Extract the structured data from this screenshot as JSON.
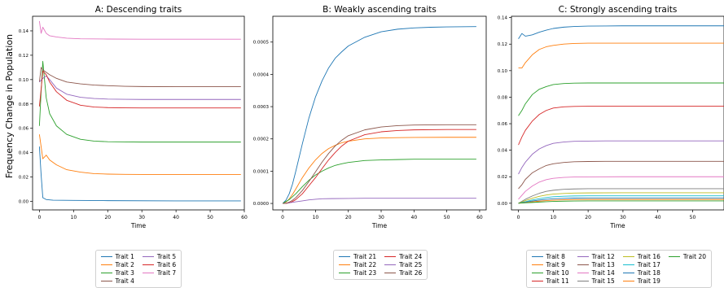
{
  "ylabel": "Frequency Change in Population",
  "palette": [
    "#1f77b4",
    "#ff7f0e",
    "#2ca02c",
    "#d62728",
    "#9467bd",
    "#8c564b",
    "#e377c2",
    "#7f7f7f",
    "#bcbd22",
    "#17becf"
  ],
  "chart_data": [
    {
      "type": "line",
      "title": "A: Descending traits",
      "xlabel": "Time",
      "ylabel": "Frequency Change in Population",
      "xlim": [
        -2,
        60
      ],
      "ylim": [
        -0.007,
        0.152
      ],
      "xticks": [
        0,
        10,
        20,
        30,
        40,
        50,
        60
      ],
      "yticks": [
        0.0,
        0.02,
        0.04,
        0.06,
        0.08,
        0.1,
        0.12,
        0.14
      ],
      "ytick_labels": [
        "0.00",
        "0.02",
        "0.04",
        "0.06",
        "0.08",
        "0.10",
        "0.12",
        "0.14"
      ],
      "legend": {
        "placement": "bottom-center",
        "columns": 2
      },
      "series": [
        {
          "name": "Trait 1",
          "color": "#1f77b4",
          "x": [
            0,
            0.5,
            1,
            2,
            4,
            10,
            20,
            40,
            59
          ],
          "y": [
            0.045,
            0.022,
            0.003,
            0.0015,
            0.001,
            0.0008,
            0.0006,
            0.0004,
            0.0004
          ]
        },
        {
          "name": "Trait 2",
          "color": "#ff7f0e",
          "x": [
            0,
            0.5,
            1,
            2,
            3,
            5,
            8,
            12,
            16,
            20,
            25,
            30,
            40,
            59
          ],
          "y": [
            0.055,
            0.045,
            0.035,
            0.038,
            0.034,
            0.03,
            0.026,
            0.024,
            0.0228,
            0.0224,
            0.0222,
            0.0221,
            0.0221,
            0.0221
          ]
        },
        {
          "name": "Trait 3",
          "color": "#2ca02c",
          "x": [
            0,
            0.5,
            1,
            2,
            3,
            5,
            8,
            12,
            16,
            20,
            25,
            30,
            40,
            59
          ],
          "y": [
            0.062,
            0.09,
            0.115,
            0.085,
            0.072,
            0.062,
            0.055,
            0.051,
            0.0495,
            0.049,
            0.0488,
            0.0487,
            0.0487,
            0.0487
          ]
        },
        {
          "name": "Trait 4",
          "color": "#8c564b",
          "x": [
            0,
            0.5,
            1,
            2,
            3,
            5,
            8,
            12,
            16,
            20,
            25,
            30,
            40,
            59
          ],
          "y": [
            0.098,
            0.11,
            0.108,
            0.106,
            0.104,
            0.101,
            0.098,
            0.0965,
            0.0955,
            0.095,
            0.0945,
            0.0943,
            0.0942,
            0.0942
          ]
        },
        {
          "name": "Trait 5",
          "color": "#9467bd",
          "x": [
            0,
            1,
            2,
            3,
            5,
            8,
            12,
            16,
            20,
            25,
            30,
            40,
            59
          ],
          "y": [
            0.098,
            0.101,
            0.103,
            0.1,
            0.093,
            0.088,
            0.0855,
            0.0845,
            0.084,
            0.0838,
            0.0837,
            0.0837,
            0.0837
          ]
        },
        {
          "name": "Trait 6",
          "color": "#d62728",
          "x": [
            0,
            0.5,
            1,
            2,
            3,
            5,
            8,
            12,
            16,
            20,
            25,
            30,
            40,
            59
          ],
          "y": [
            0.078,
            0.092,
            0.107,
            0.104,
            0.098,
            0.09,
            0.083,
            0.079,
            0.0775,
            0.077,
            0.0768,
            0.0767,
            0.0767,
            0.0767
          ]
        },
        {
          "name": "Trait 7",
          "color": "#e377c2",
          "x": [
            0,
            0.5,
            1,
            2,
            3,
            5,
            8,
            12,
            20,
            30,
            40,
            59
          ],
          "y": [
            0.148,
            0.138,
            0.143,
            0.138,
            0.136,
            0.135,
            0.134,
            0.1335,
            0.1333,
            0.1332,
            0.1332,
            0.1332
          ]
        }
      ]
    },
    {
      "type": "line",
      "title": "B: Weakly ascending traits",
      "xlabel": "Time",
      "ylabel": "",
      "xlim": [
        -3,
        62
      ],
      "ylim": [
        -2e-05,
        0.00058
      ],
      "xticks": [
        0,
        10,
        20,
        30,
        40,
        50,
        60
      ],
      "yticks": [
        0.0,
        0.0001,
        0.0002,
        0.0003,
        0.0004,
        0.0005
      ],
      "ytick_labels": [
        "0.0000",
        "0.0001",
        "0.0002",
        "0.0003",
        "0.0004",
        "0.0005"
      ],
      "legend": {
        "placement": "bottom-center",
        "columns": 2
      },
      "series": [
        {
          "name": "Trait 21",
          "color": "#1f77b4",
          "x": [
            0,
            1,
            2,
            3,
            4,
            6,
            8,
            10,
            12,
            14,
            16,
            18,
            20,
            25,
            30,
            35,
            40,
            45,
            50,
            59
          ],
          "y": [
            0,
            1e-05,
            3e-05,
            6e-05,
            0.0001,
            0.000185,
            0.000265,
            0.00033,
            0.00038,
            0.00042,
            0.00045,
            0.00047,
            0.000488,
            0.000515,
            0.000532,
            0.00054,
            0.000544,
            0.000546,
            0.000547,
            0.000548
          ]
        },
        {
          "name": "Trait 22",
          "color": "#ff7f0e",
          "x": [
            0,
            1,
            2,
            3,
            4,
            6,
            8,
            10,
            12,
            14,
            16,
            18,
            20,
            25,
            30,
            35,
            40,
            50,
            59
          ],
          "y": [
            0,
            4e-06,
            1.4e-05,
            2.8e-05,
            4.5e-05,
            8e-05,
            0.00011,
            0.000135,
            0.000155,
            0.00017,
            0.00018,
            0.000188,
            0.000193,
            0.0002,
            0.000203,
            0.000204,
            0.0002045,
            0.000205,
            0.000205
          ]
        },
        {
          "name": "Trait 23",
          "color": "#2ca02c",
          "x": [
            0,
            2,
            4,
            6,
            8,
            10,
            12,
            14,
            16,
            18,
            20,
            25,
            30,
            35,
            40,
            50,
            59
          ],
          "y": [
            0,
            1.2e-05,
            3e-05,
            5.2e-05,
            7.2e-05,
            8.8e-05,
            0.0001,
            0.00011,
            0.000118,
            0.000123,
            0.000127,
            0.000133,
            0.000135,
            0.000136,
            0.000137,
            0.000137,
            0.000137
          ]
        },
        {
          "name": "Trait 24",
          "color": "#d62728",
          "x": [
            0,
            1,
            2,
            3,
            4,
            6,
            8,
            10,
            12,
            14,
            16,
            18,
            20,
            25,
            30,
            35,
            40,
            50,
            59
          ],
          "y": [
            0,
            0,
            2e-06,
            6e-06,
            1.2e-05,
            3e-05,
            5.5e-05,
            8e-05,
            0.000108,
            0.000135,
            0.000158,
            0.000178,
            0.000193,
            0.000213,
            0.000222,
            0.000226,
            0.000228,
            0.000229,
            0.000229
          ]
        },
        {
          "name": "Trait 25",
          "color": "#9467bd",
          "x": [
            0,
            2,
            4,
            6,
            8,
            10,
            12,
            15,
            20,
            25,
            30,
            40,
            50,
            59
          ],
          "y": [
            0,
            2e-06,
            5e-06,
            8e-06,
            1.1e-05,
            1.3e-05,
            1.45e-05,
            1.5e-05,
            1.55e-05,
            1.6e-05,
            1.6e-05,
            1.6e-05,
            1.6e-05,
            1.6e-05
          ]
        },
        {
          "name": "Trait 26",
          "color": "#8c564b",
          "x": [
            0,
            1,
            2,
            3,
            4,
            6,
            8,
            10,
            12,
            14,
            16,
            18,
            20,
            25,
            30,
            35,
            40,
            50,
            59
          ],
          "y": [
            0,
            0,
            4e-06,
            1e-05,
            1.8e-05,
            4e-05,
            6.8e-05,
            9.8e-05,
            0.000128,
            0.000155,
            0.000178,
            0.000196,
            0.00021,
            0.000228,
            0.000237,
            0.000241,
            0.000243,
            0.000244,
            0.000244
          ]
        }
      ]
    },
    {
      "type": "line",
      "title": "C: Strongly ascending traits",
      "xlabel": "Time",
      "ylabel": "",
      "xlim": [
        -2,
        59
      ],
      "ylim": [
        -0.005,
        0.141
      ],
      "xticks": [
        0,
        10,
        20,
        30,
        40,
        50,
        60
      ],
      "yticks": [
        0.0,
        0.02,
        0.04,
        0.06,
        0.08,
        0.1,
        0.12,
        0.14
      ],
      "ytick_labels": [
        "0.00",
        "0.02",
        "0.04",
        "0.06",
        "0.08",
        "0.10",
        "0.12",
        "0.14"
      ],
      "legend": {
        "placement": "bottom-center",
        "columns": 4
      },
      "series": [
        {
          "name": "Trait 8",
          "color": "#1f77b4",
          "x": [
            0,
            0.5,
            1,
            1.5,
            2,
            3,
            4,
            6,
            8,
            10,
            13,
            16,
            20,
            25,
            30,
            40,
            50,
            59
          ],
          "y": [
            0.124,
            0.126,
            0.128,
            0.127,
            0.126,
            0.1265,
            0.127,
            0.129,
            0.1305,
            0.1318,
            0.1328,
            0.1333,
            0.1336,
            0.1337,
            0.1338,
            0.1338,
            0.1338,
            0.1338
          ]
        },
        {
          "name": "Trait 9",
          "color": "#ff7f0e",
          "x": [
            0,
            1,
            2,
            4,
            6,
            8,
            10,
            13,
            16,
            20,
            25,
            30,
            40,
            59
          ],
          "y": [
            0.102,
            0.102,
            0.106,
            0.112,
            0.116,
            0.118,
            0.119,
            0.12,
            0.1205,
            0.1207,
            0.1207,
            0.1207,
            0.1207,
            0.1207
          ]
        },
        {
          "name": "Trait 10",
          "color": "#2ca02c",
          "x": [
            0,
            1,
            2,
            4,
            6,
            8,
            10,
            13,
            16,
            20,
            25,
            30,
            40,
            59
          ],
          "y": [
            0.066,
            0.07,
            0.075,
            0.082,
            0.086,
            0.088,
            0.0895,
            0.0903,
            0.0906,
            0.0907,
            0.0907,
            0.0907,
            0.0907,
            0.0907
          ]
        },
        {
          "name": "Trait 11",
          "color": "#d62728",
          "x": [
            0,
            1,
            2,
            4,
            6,
            8,
            10,
            13,
            16,
            20,
            25,
            30,
            40,
            59
          ],
          "y": [
            0.044,
            0.05,
            0.055,
            0.062,
            0.067,
            0.07,
            0.0718,
            0.0727,
            0.073,
            0.0732,
            0.0732,
            0.0732,
            0.0732,
            0.0732
          ]
        },
        {
          "name": "Trait 12",
          "color": "#9467bd",
          "x": [
            0,
            1,
            2,
            4,
            6,
            8,
            10,
            13,
            16,
            20,
            25,
            30,
            40,
            59
          ],
          "y": [
            0.022,
            0.027,
            0.031,
            0.037,
            0.041,
            0.0435,
            0.0452,
            0.0462,
            0.0467,
            0.0469,
            0.047,
            0.047,
            0.047,
            0.047
          ]
        },
        {
          "name": "Trait 13",
          "color": "#8c564b",
          "x": [
            0,
            1,
            2,
            4,
            6,
            8,
            10,
            13,
            16,
            20,
            25,
            30,
            40,
            59
          ],
          "y": [
            0.011,
            0.014,
            0.018,
            0.023,
            0.026,
            0.0285,
            0.0298,
            0.0308,
            0.0313,
            0.0315,
            0.0316,
            0.0316,
            0.0316,
            0.0316
          ]
        },
        {
          "name": "Trait 14",
          "color": "#e377c2",
          "x": [
            0,
            1,
            2,
            4,
            6,
            8,
            10,
            13,
            16,
            20,
            30,
            40,
            59
          ],
          "y": [
            0.003,
            0.006,
            0.009,
            0.013,
            0.016,
            0.0178,
            0.0188,
            0.0195,
            0.0198,
            0.0199,
            0.02,
            0.02,
            0.02
          ]
        },
        {
          "name": "Trait 15",
          "color": "#7f7f7f",
          "x": [
            0,
            2,
            4,
            6,
            8,
            10,
            13,
            16,
            20,
            30,
            40,
            59
          ],
          "y": [
            0.0,
            0.003,
            0.0055,
            0.0075,
            0.009,
            0.0098,
            0.0105,
            0.0108,
            0.011,
            0.011,
            0.011,
            0.011
          ]
        },
        {
          "name": "Trait 16",
          "color": "#bcbd22",
          "x": [
            0,
            2,
            4,
            6,
            8,
            10,
            13,
            16,
            20,
            30,
            40,
            59
          ],
          "y": [
            0.0,
            0.002,
            0.0038,
            0.0052,
            0.0062,
            0.0069,
            0.0074,
            0.0077,
            0.0078,
            0.0079,
            0.0079,
            0.0079
          ]
        },
        {
          "name": "Trait 17",
          "color": "#17becf",
          "x": [
            0,
            2,
            4,
            6,
            8,
            10,
            13,
            16,
            20,
            30,
            40,
            59
          ],
          "y": [
            0.0,
            0.0012,
            0.0025,
            0.0035,
            0.0043,
            0.0049,
            0.0053,
            0.0055,
            0.0056,
            0.0056,
            0.0056,
            0.0056
          ]
        },
        {
          "name": "Trait 18",
          "color": "#1f77b4",
          "x": [
            0,
            2,
            4,
            6,
            8,
            10,
            13,
            16,
            20,
            30,
            40,
            59
          ],
          "y": [
            0.0,
            0.0008,
            0.0017,
            0.0024,
            0.003,
            0.0034,
            0.0037,
            0.0039,
            0.004,
            0.004,
            0.004,
            0.004
          ]
        },
        {
          "name": "Trait 19",
          "color": "#ff7f0e",
          "x": [
            0,
            2,
            4,
            6,
            8,
            10,
            13,
            16,
            20,
            30,
            40,
            59
          ],
          "y": [
            0.0,
            0.0005,
            0.0011,
            0.0016,
            0.002,
            0.0023,
            0.0026,
            0.0028,
            0.0029,
            0.0029,
            0.0029,
            0.0029
          ]
        },
        {
          "name": "Trait 20",
          "color": "#2ca02c",
          "x": [
            0,
            2,
            4,
            6,
            8,
            10,
            13,
            16,
            20,
            30,
            40,
            59
          ],
          "y": [
            0.0,
            0.0003,
            0.0006,
            0.0009,
            0.0012,
            0.0014,
            0.0016,
            0.0017,
            0.0018,
            0.0018,
            0.0018,
            0.0018
          ]
        }
      ]
    }
  ]
}
